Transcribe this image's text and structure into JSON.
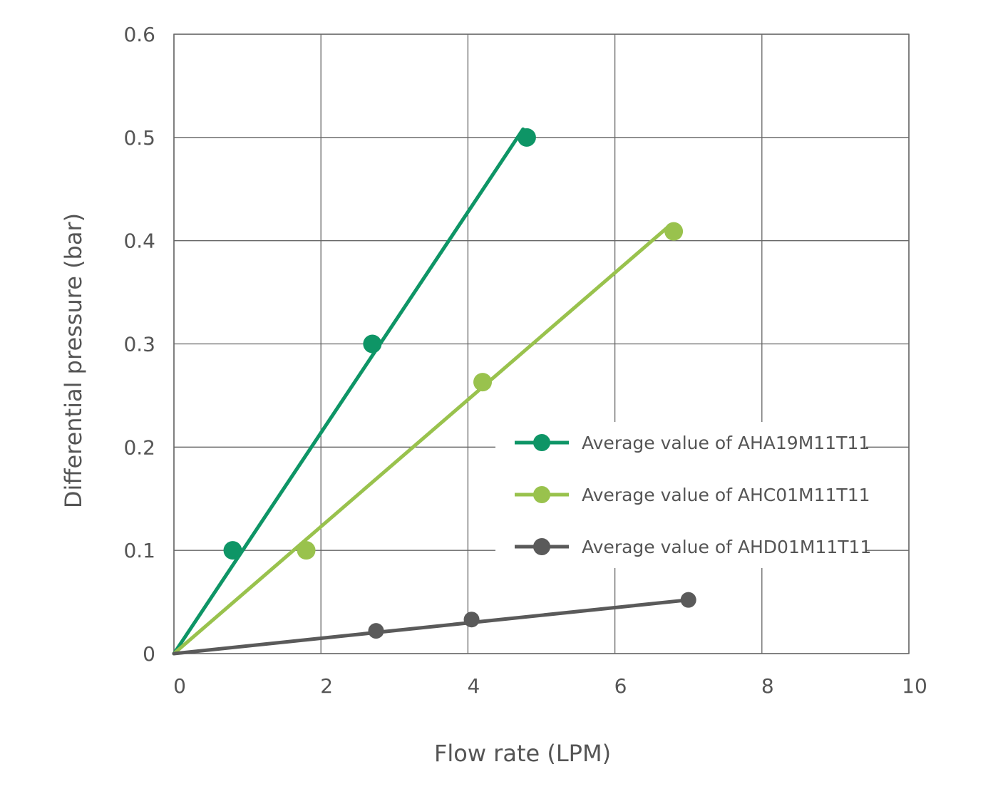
{
  "chart_data": {
    "type": "line",
    "title": "",
    "xlabel": "Flow rate (LPM)",
    "ylabel": "Differential pressure (bar)",
    "xlim": [
      0,
      10
    ],
    "ylim": [
      0,
      0.6
    ],
    "xticks": [
      "0",
      "2",
      "4",
      "6",
      "8",
      "10"
    ],
    "yticks": [
      "0",
      "0.1",
      "0.2",
      "0.3",
      "0.4",
      "0.5",
      "0.6"
    ],
    "grid": true,
    "legend_position": "right-middle",
    "series": [
      {
        "name": "Average value of AHA19M11T11",
        "color": "#0e9566",
        "points": [
          [
            0.8,
            0.1
          ],
          [
            2.7,
            0.3
          ],
          [
            4.8,
            0.5
          ]
        ],
        "line": [
          [
            0,
            0
          ],
          [
            4.75,
            0.508
          ]
        ]
      },
      {
        "name": "Average value of AHC01M11T11",
        "color": "#99c24d",
        "points": [
          [
            1.8,
            0.1
          ],
          [
            4.2,
            0.263
          ],
          [
            6.8,
            0.409
          ]
        ],
        "line": [
          [
            0,
            0
          ],
          [
            6.75,
            0.415
          ]
        ]
      },
      {
        "name": "Average value of AHD01M11T11",
        "color": "#5a5a5a",
        "points": [
          [
            2.75,
            0.022
          ],
          [
            4.05,
            0.033
          ],
          [
            7.0,
            0.052
          ]
        ],
        "line": [
          [
            0,
            0
          ],
          [
            7.0,
            0.052
          ]
        ]
      }
    ]
  }
}
